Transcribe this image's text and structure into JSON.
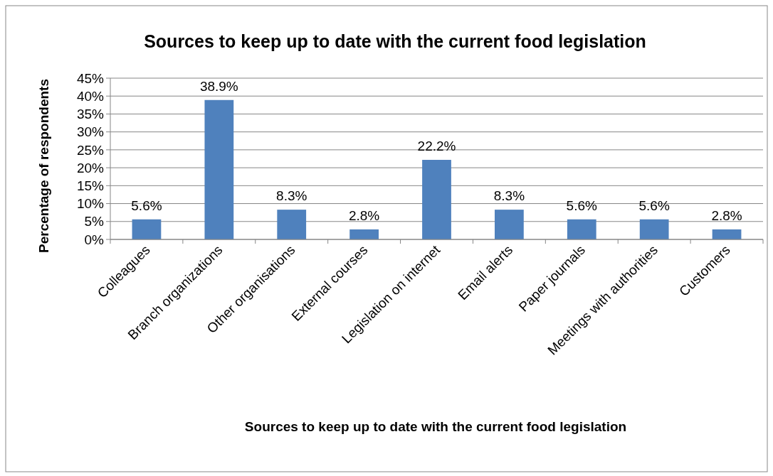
{
  "chart_data": {
    "type": "bar",
    "title": "Sources to keep up to date with the current food legislation",
    "xlabel": "Sources to keep up to date with the current food legislation",
    "ylabel": "Percentage of respondents",
    "categories": [
      "Colleagues",
      "Branch organizations",
      "Other organisations",
      "External courses",
      "Legislation on internet",
      "Email alerts",
      "Paper journals",
      "Meetings with authorities",
      "Customers"
    ],
    "values": [
      5.6,
      38.9,
      8.3,
      2.8,
      22.2,
      8.3,
      5.6,
      5.6,
      2.8
    ],
    "value_labels": [
      "5.6%",
      "38.9%",
      "8.3%",
      "2.8%",
      "22.2%",
      "8.3%",
      "5.6%",
      "5.6%",
      "2.8%"
    ],
    "color": "#4f81bd",
    "ylim": [
      0,
      45
    ],
    "yticks": [
      {
        "value": 0,
        "label": "0%"
      },
      {
        "value": 5,
        "label": "5%"
      },
      {
        "value": 10,
        "label": "10%"
      },
      {
        "value": 15,
        "label": "15%"
      },
      {
        "value": 20,
        "label": "20%"
      },
      {
        "value": 25,
        "label": "25%"
      },
      {
        "value": 30,
        "label": "30%"
      },
      {
        "value": 35,
        "label": "35%"
      },
      {
        "value": 40,
        "label": "40%"
      },
      {
        "value": 45,
        "label": "45%"
      }
    ],
    "grid": "y"
  }
}
